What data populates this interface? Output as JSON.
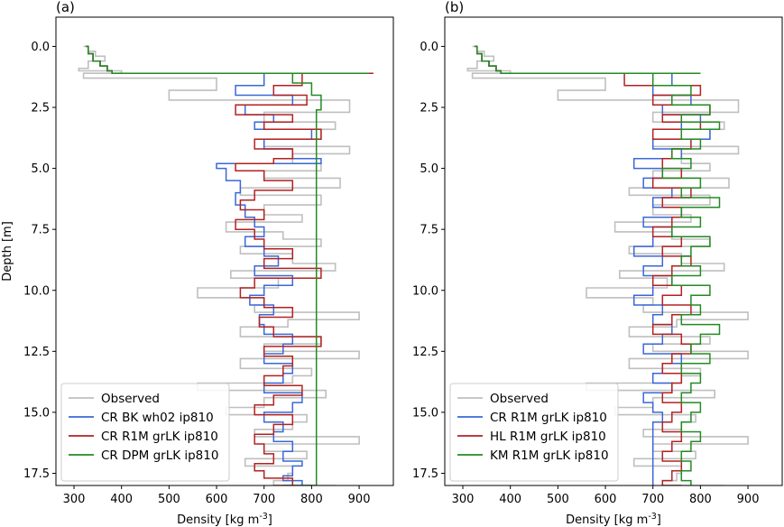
{
  "chart_data": [
    {
      "type": "line",
      "panel_label": "(a)",
      "xlabel": "Density [kg m",
      "xlabel_sup": "-3",
      "xlabel_tail": "]",
      "ylabel": "Depth [m]",
      "xlim": [
        262,
        972
      ],
      "ylim": [
        18.0,
        -1.2
      ],
      "x_ticks": [
        300,
        400,
        500,
        600,
        700,
        800,
        900
      ],
      "y_ticks": [
        0.0,
        2.5,
        5.0,
        7.5,
        10.0,
        12.5,
        15.0,
        17.5
      ],
      "y_tick_labels": [
        "0.0",
        "2.5",
        "5.0",
        "7.5",
        "10.0",
        "12.5",
        "15.0",
        "17.5"
      ],
      "legend_position": "lower-left",
      "series": [
        {
          "name": "Observed",
          "color": "#bfbfbf",
          "x": [
            320,
            330,
            345,
            365,
            330,
            310,
            400,
            320,
            600,
            500,
            880,
            700,
            850,
            820,
            700,
            880,
            760,
            820,
            700,
            860,
            650,
            820,
            700,
            780,
            620,
            740,
            820,
            650,
            760,
            850,
            630,
            730,
            560,
            700,
            680,
            900,
            750,
            650,
            820,
            700,
            900,
            650,
            800,
            760,
            560,
            830,
            700,
            620,
            790,
            760,
            680,
            900,
            700,
            790,
            660,
            760,
            750,
            720,
            850,
            760
          ],
          "y": [
            0.0,
            0.2,
            0.4,
            0.6,
            0.9,
            1.0,
            1.1,
            1.3,
            1.8,
            2.2,
            2.7,
            3.1,
            3.4,
            3.8,
            4.1,
            4.4,
            4.8,
            5.1,
            5.4,
            5.8,
            6.1,
            6.5,
            6.9,
            7.2,
            7.6,
            7.9,
            8.2,
            8.5,
            8.9,
            9.2,
            9.5,
            9.9,
            10.3,
            10.6,
            10.9,
            11.2,
            11.5,
            11.9,
            12.2,
            12.5,
            12.8,
            13.2,
            13.5,
            13.8,
            14.1,
            14.4,
            14.8,
            15.1,
            15.4,
            15.7,
            16.0,
            16.3,
            16.6,
            16.9,
            17.2,
            17.5,
            17.8,
            18.0,
            18.0,
            18.0
          ]
        },
        {
          "name": "CR BK wh02 ip810",
          "color": "#3a68d8",
          "x": [
            325,
            330,
            340,
            355,
            370,
            380,
            840,
            700,
            640,
            760,
            660,
            720,
            680,
            800,
            700,
            760,
            820,
            640,
            600,
            620,
            650,
            640,
            660,
            680,
            700,
            660,
            700,
            730,
            680,
            760,
            700,
            670,
            720,
            690,
            700,
            760,
            740,
            700,
            760,
            740,
            700,
            780,
            760,
            700,
            740,
            720,
            760,
            740,
            780,
            760,
            760,
            740,
            780,
            760,
            800,
            780,
            760,
            740
          ],
          "y": [
            0.0,
            0.3,
            0.6,
            0.8,
            1.0,
            1.1,
            1.1,
            1.6,
            2.0,
            2.4,
            2.8,
            3.1,
            3.4,
            3.8,
            4.2,
            4.6,
            4.8,
            4.8,
            5.0,
            5.5,
            6.0,
            6.5,
            7.0,
            7.4,
            7.8,
            8.2,
            8.6,
            9.0,
            9.4,
            9.8,
            10.2,
            10.6,
            11.0,
            11.4,
            11.8,
            12.2,
            12.6,
            13.0,
            13.4,
            13.8,
            14.2,
            14.6,
            15.0,
            15.4,
            15.8,
            16.2,
            16.6,
            17.0,
            17.2,
            17.4,
            17.6,
            17.8,
            18.0,
            18.0,
            18.0,
            18.0,
            18.0,
            18.0
          ]
        },
        {
          "name": "CR R1M grLK ip810",
          "color": "#b22222",
          "x": [
            325,
            330,
            340,
            355,
            370,
            380,
            930,
            780,
            720,
            790,
            640,
            760,
            700,
            820,
            680,
            760,
            720,
            640,
            700,
            760,
            680,
            650,
            700,
            640,
            680,
            700,
            760,
            700,
            820,
            680,
            650,
            700,
            760,
            690,
            720,
            820,
            700,
            760,
            740,
            700,
            780,
            720,
            680,
            760,
            720,
            680,
            700,
            720,
            680,
            700,
            760,
            740,
            720,
            720,
            720,
            720,
            720,
            720
          ],
          "y": [
            0.0,
            0.3,
            0.6,
            0.8,
            1.0,
            1.1,
            1.1,
            1.6,
            2.0,
            2.4,
            2.8,
            3.1,
            3.4,
            3.8,
            4.2,
            4.6,
            4.8,
            5.1,
            5.5,
            5.9,
            6.3,
            6.7,
            7.1,
            7.5,
            7.9,
            8.3,
            8.7,
            9.1,
            9.5,
            9.9,
            10.3,
            10.7,
            11.1,
            11.5,
            11.9,
            12.3,
            12.7,
            13.1,
            13.5,
            13.9,
            14.3,
            14.7,
            15.1,
            15.5,
            15.9,
            16.3,
            16.7,
            17.1,
            17.4,
            17.7,
            18.0,
            18.0,
            18.0,
            18.0,
            18.0,
            18.0,
            18.0,
            18.0
          ]
        },
        {
          "name": "CR DPM grLK ip810",
          "color": "#228b22",
          "x": [
            325,
            330,
            340,
            355,
            370,
            380,
            920,
            760,
            800,
            820,
            810,
            810,
            810,
            810,
            810,
            810,
            810,
            810,
            810,
            810,
            810,
            810,
            810,
            810,
            810,
            810,
            810,
            810,
            810,
            810,
            810,
            810,
            810,
            810,
            810,
            810,
            810,
            810,
            810,
            810,
            810,
            810,
            810,
            810,
            810,
            800,
            790,
            780,
            760,
            780,
            800,
            790,
            780,
            780,
            780,
            780,
            780,
            780
          ],
          "y": [
            0.0,
            0.3,
            0.6,
            0.8,
            1.0,
            1.1,
            1.1,
            1.5,
            2.0,
            2.6,
            3.0,
            3.5,
            4.0,
            4.5,
            5.0,
            5.5,
            6.0,
            6.5,
            7.0,
            7.5,
            8.0,
            8.5,
            9.0,
            9.5,
            10.0,
            10.5,
            11.0,
            11.5,
            12.0,
            12.5,
            13.0,
            13.5,
            14.0,
            14.5,
            15.0,
            15.5,
            16.0,
            16.5,
            17.0,
            17.5,
            18.0,
            18.0,
            18.0,
            18.0,
            18.0,
            18.0,
            18.0,
            18.0,
            18.0,
            18.0,
            18.0,
            18.0,
            18.0,
            18.0,
            18.0,
            18.0,
            18.0,
            18.0
          ]
        }
      ]
    },
    {
      "type": "line",
      "panel_label": "(b)",
      "xlabel": "Density [kg m",
      "xlabel_sup": "-3",
      "xlabel_tail": "]",
      "ylabel": "",
      "xlim": [
        262,
        972
      ],
      "ylim": [
        18.0,
        -1.2
      ],
      "x_ticks": [
        300,
        400,
        500,
        600,
        700,
        800,
        900
      ],
      "y_ticks": [
        0.0,
        2.5,
        5.0,
        7.5,
        10.0,
        12.5,
        15.0,
        17.5
      ],
      "y_tick_labels": [
        "0.0",
        "2.5",
        "5.0",
        "7.5",
        "10.0",
        "12.5",
        "15.0",
        "17.5"
      ],
      "legend_position": "lower-left",
      "series": [
        {
          "name": "Observed",
          "color": "#bfbfbf",
          "x": [
            320,
            330,
            345,
            365,
            330,
            310,
            400,
            320,
            600,
            500,
            880,
            700,
            850,
            820,
            700,
            880,
            760,
            820,
            700,
            860,
            650,
            820,
            700,
            780,
            620,
            740,
            820,
            650,
            760,
            850,
            630,
            730,
            560,
            700,
            680,
            900,
            750,
            650,
            820,
            700,
            900,
            650,
            800,
            760,
            560,
            830,
            700,
            620,
            790,
            760,
            680,
            900,
            700,
            790,
            660,
            760,
            750,
            720,
            850,
            760
          ],
          "y": [
            0.0,
            0.2,
            0.4,
            0.6,
            0.9,
            1.0,
            1.1,
            1.3,
            1.8,
            2.2,
            2.7,
            3.1,
            3.4,
            3.8,
            4.1,
            4.4,
            4.8,
            5.1,
            5.4,
            5.8,
            6.1,
            6.5,
            6.9,
            7.2,
            7.6,
            7.9,
            8.2,
            8.5,
            8.9,
            9.2,
            9.5,
            9.9,
            10.3,
            10.6,
            10.9,
            11.2,
            11.5,
            11.9,
            12.2,
            12.5,
            12.8,
            13.2,
            13.5,
            13.8,
            14.1,
            14.4,
            14.8,
            15.1,
            15.4,
            15.7,
            16.0,
            16.3,
            16.6,
            16.9,
            17.2,
            17.5,
            17.8,
            18.0,
            18.0,
            18.0
          ]
        },
        {
          "name": "CR R1M grLK ip810",
          "color": "#3a68d8",
          "x": [
            325,
            330,
            340,
            355,
            370,
            380,
            800,
            740,
            700,
            780,
            720,
            800,
            760,
            820,
            700,
            760,
            660,
            720,
            680,
            740,
            700,
            760,
            680,
            740,
            700,
            660,
            720,
            680,
            740,
            700,
            660,
            720,
            700,
            740,
            720,
            680,
            760,
            720,
            700,
            740,
            680,
            700,
            720,
            700,
            700,
            700,
            700,
            700,
            700,
            700,
            700,
            700,
            700,
            700,
            700,
            700,
            700,
            700
          ],
          "y": [
            0.0,
            0.3,
            0.6,
            0.8,
            1.0,
            1.1,
            1.1,
            1.6,
            2.0,
            2.4,
            2.8,
            3.1,
            3.4,
            3.8,
            4.2,
            4.6,
            5.0,
            5.4,
            5.8,
            6.2,
            6.6,
            7.0,
            7.4,
            7.8,
            8.2,
            8.6,
            9.0,
            9.4,
            9.8,
            10.2,
            10.6,
            11.0,
            11.4,
            11.8,
            12.2,
            12.6,
            13.0,
            13.4,
            13.8,
            14.2,
            14.6,
            15.0,
            15.4,
            15.8,
            16.2,
            16.6,
            17.0,
            17.4,
            17.8,
            18.0,
            18.0,
            18.0,
            18.0,
            18.0,
            18.0,
            18.0,
            18.0,
            18.0
          ]
        },
        {
          "name": "HL R1M grLK ip810",
          "color": "#b22222",
          "x": [
            325,
            330,
            340,
            355,
            370,
            380,
            780,
            640,
            800,
            700,
            820,
            720,
            800,
            700,
            780,
            740,
            720,
            760,
            700,
            780,
            720,
            760,
            740,
            700,
            760,
            720,
            780,
            740,
            700,
            760,
            720,
            780,
            740,
            700,
            760,
            780,
            740,
            720,
            760,
            740,
            720,
            760,
            740,
            720,
            760,
            740,
            720,
            760,
            740,
            720,
            760,
            740,
            740,
            740,
            740,
            740,
            740,
            740
          ],
          "y": [
            0.0,
            0.3,
            0.6,
            0.8,
            1.0,
            1.1,
            1.1,
            1.6,
            2.0,
            2.4,
            2.8,
            3.1,
            3.4,
            3.8,
            4.2,
            4.6,
            5.0,
            5.4,
            5.8,
            6.2,
            6.6,
            7.0,
            7.4,
            7.8,
            8.2,
            8.6,
            9.0,
            9.4,
            9.8,
            10.2,
            10.6,
            11.0,
            11.4,
            11.8,
            12.2,
            12.6,
            13.0,
            13.4,
            13.8,
            14.2,
            14.6,
            15.0,
            15.4,
            15.8,
            16.2,
            16.6,
            17.0,
            17.4,
            17.8,
            18.0,
            18.0,
            18.0,
            18.0,
            18.0,
            18.0,
            18.0,
            18.0,
            18.0
          ]
        },
        {
          "name": "KM R1M grLK ip810",
          "color": "#228b22",
          "x": [
            325,
            330,
            340,
            355,
            370,
            380,
            800,
            700,
            780,
            740,
            820,
            760,
            840,
            760,
            800,
            740,
            780,
            720,
            800,
            760,
            840,
            760,
            800,
            740,
            820,
            780,
            760,
            800,
            740,
            820,
            780,
            800,
            760,
            840,
            800,
            780,
            820,
            760,
            800,
            780,
            760,
            800,
            780,
            760,
            800,
            780,
            760,
            780,
            760,
            780,
            780,
            780,
            780,
            780,
            780,
            780,
            780,
            780
          ],
          "y": [
            0.0,
            0.3,
            0.6,
            0.8,
            1.0,
            1.1,
            1.1,
            1.6,
            2.0,
            2.4,
            2.8,
            3.1,
            3.4,
            3.8,
            4.2,
            4.6,
            5.0,
            5.4,
            5.8,
            6.2,
            6.6,
            7.0,
            7.4,
            7.8,
            8.2,
            8.6,
            9.0,
            9.4,
            9.8,
            10.2,
            10.6,
            11.0,
            11.4,
            11.8,
            12.2,
            12.6,
            13.0,
            13.4,
            13.8,
            14.2,
            14.6,
            15.0,
            15.4,
            15.8,
            16.2,
            16.6,
            17.0,
            17.4,
            17.8,
            18.0,
            18.0,
            18.0,
            18.0,
            18.0,
            18.0,
            18.0,
            18.0,
            18.0
          ]
        }
      ]
    }
  ]
}
